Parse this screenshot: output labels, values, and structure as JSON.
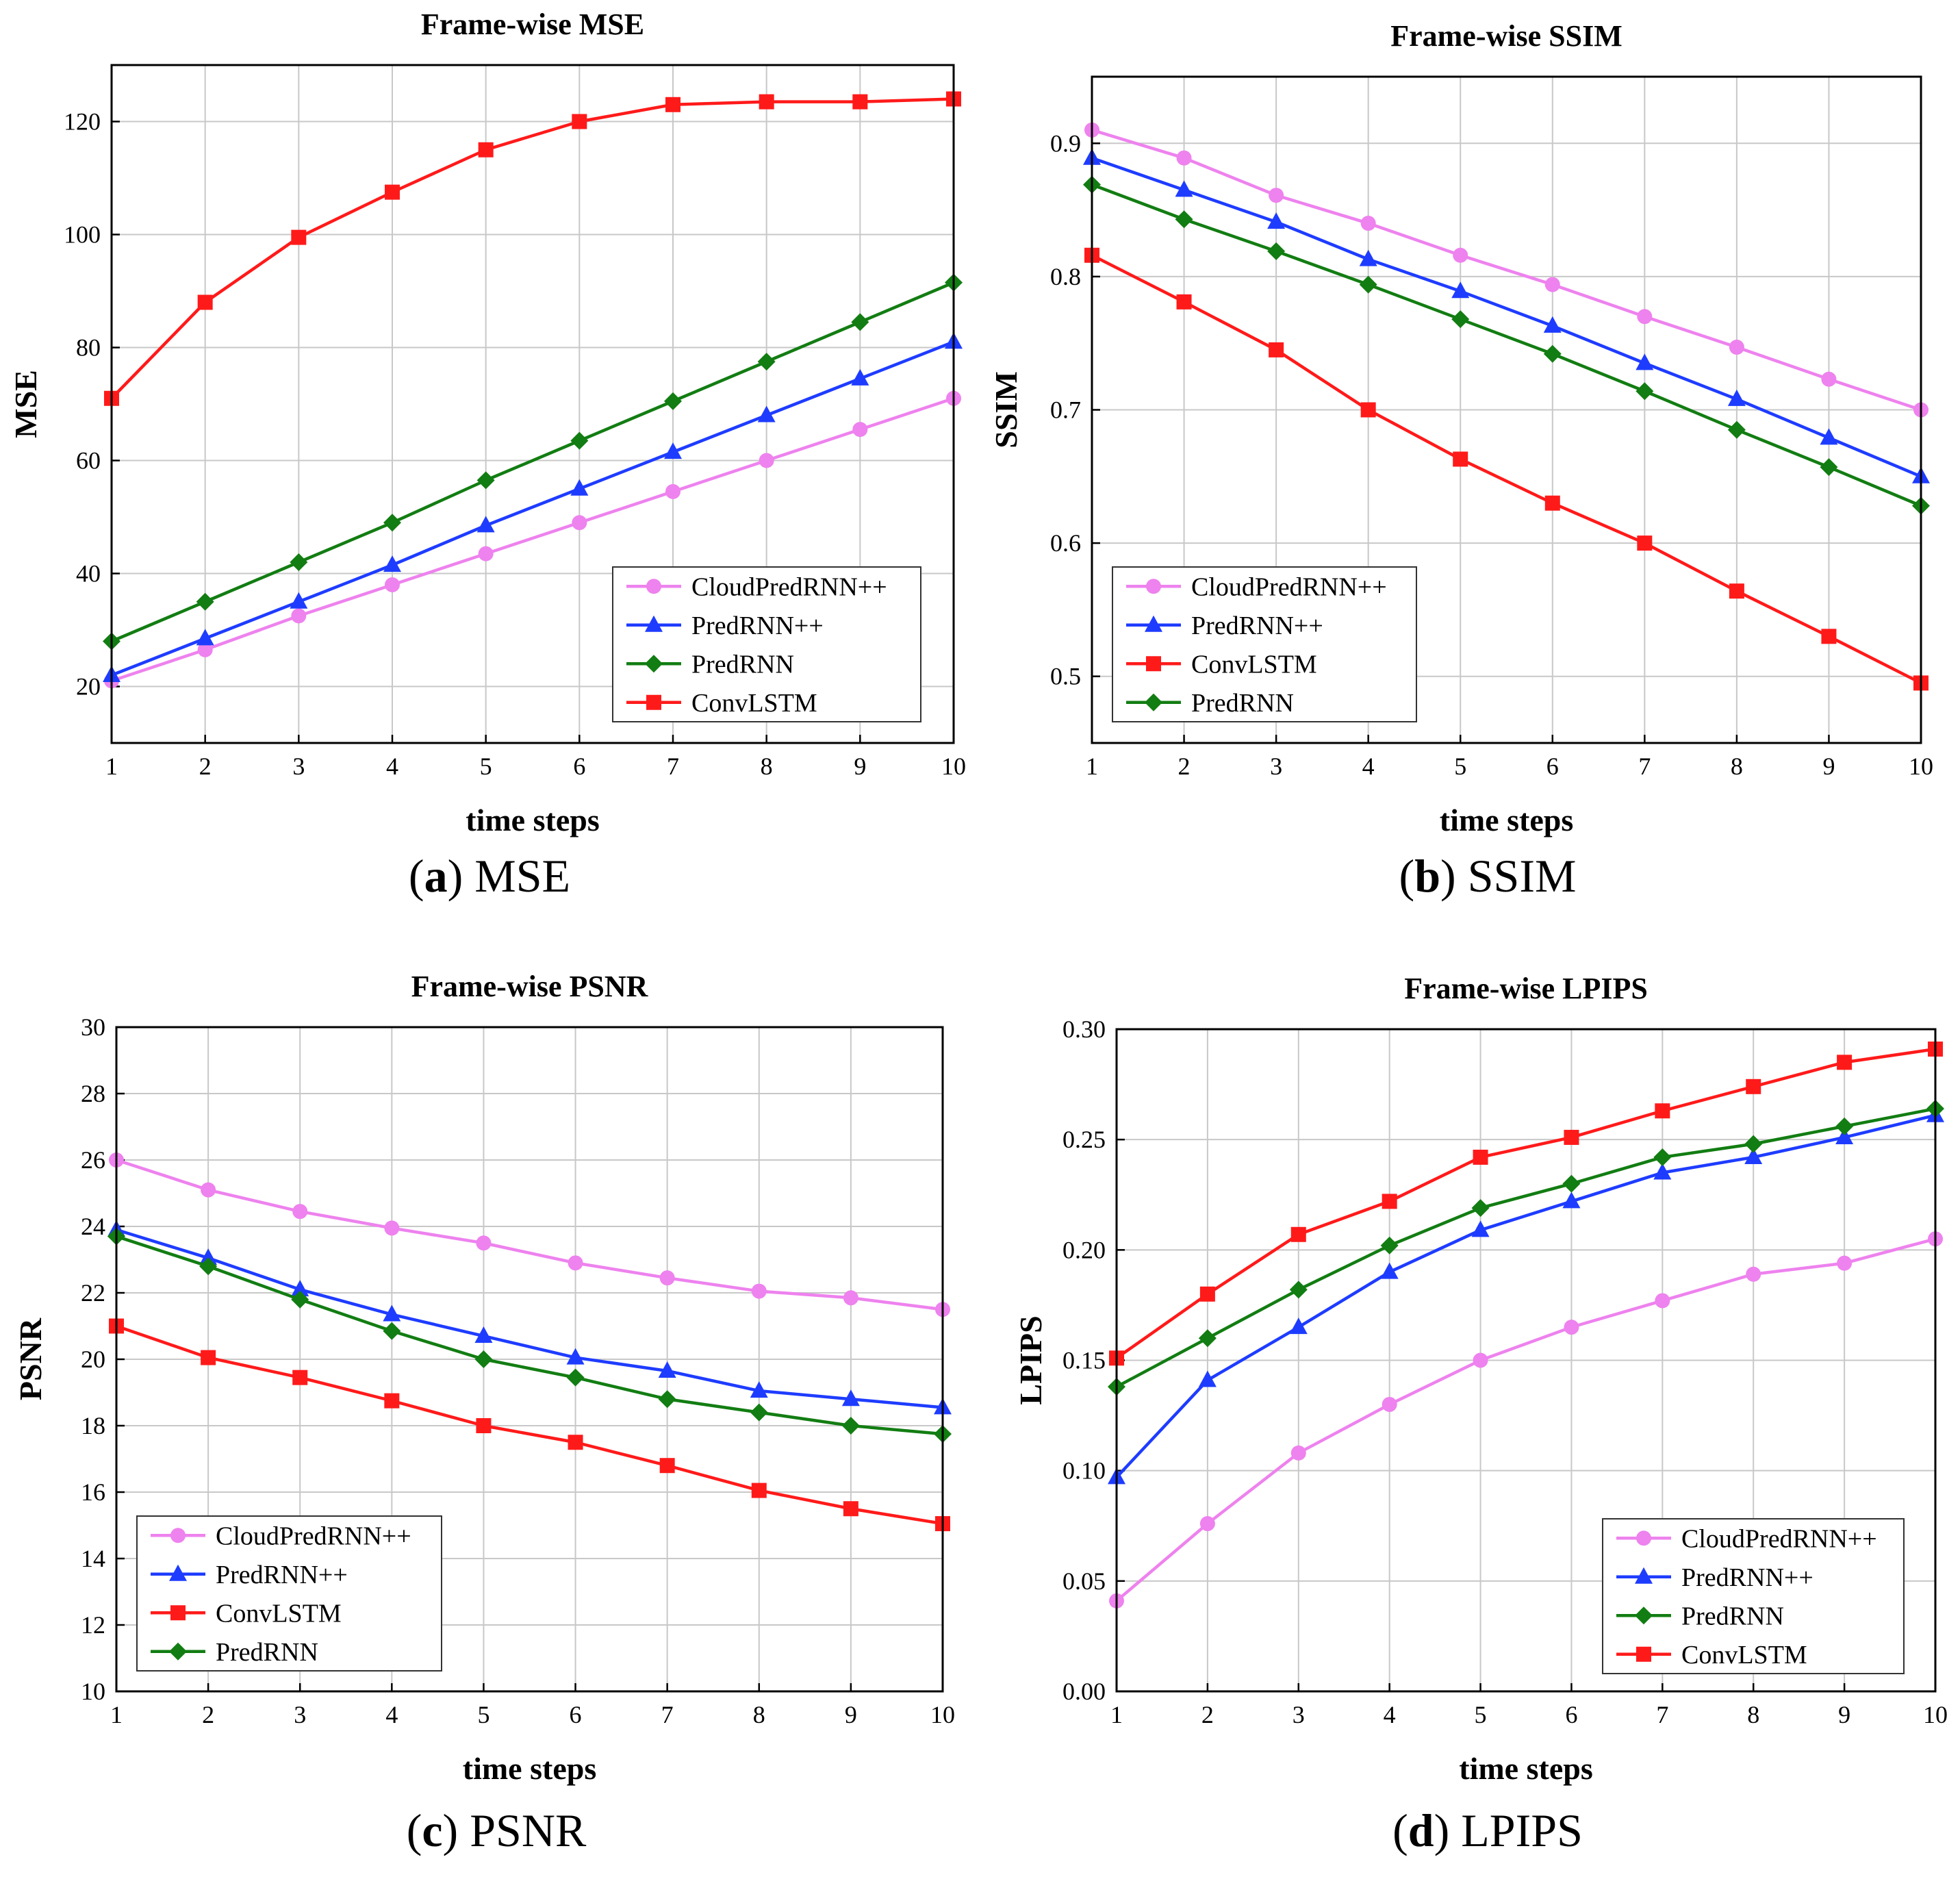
{
  "colors": {
    "CloudPredRNN++": "#ee82ee",
    "PredRNN++": "#1e3cff",
    "PredRNN": "#127d12",
    "ConvLSTM": "#ff1a1a"
  },
  "markers": {
    "CloudPredRNN++": "circle",
    "PredRNN++": "triangle",
    "PredRNN": "diamond",
    "ConvLSTM": "square"
  },
  "grid": true,
  "chart_data": [
    {
      "id": "mse",
      "type": "line",
      "title": "Frame-wise MSE",
      "xlabel": "time steps",
      "ylabel": "MSE",
      "x": [
        1,
        2,
        3,
        4,
        5,
        6,
        7,
        8,
        9,
        10
      ],
      "xlim": [
        1,
        10
      ],
      "ylim": [
        10,
        130
      ],
      "yticks": [
        20,
        40,
        60,
        80,
        100,
        120
      ],
      "ytick_labels": [
        "20",
        "40",
        "60",
        "80",
        "100",
        "120"
      ],
      "legend_position": "bottom-right",
      "legend_order": [
        "CloudPredRNN++",
        "PredRNN++",
        "PredRNN",
        "ConvLSTM"
      ],
      "series": [
        {
          "name": "CloudPredRNN++",
          "values": [
            21,
            26.5,
            32.5,
            38,
            43.5,
            49,
            54.5,
            60,
            65.5,
            71
          ]
        },
        {
          "name": "PredRNN++",
          "values": [
            22,
            28.5,
            35,
            41.5,
            48.5,
            55,
            61.5,
            68,
            74.5,
            81
          ]
        },
        {
          "name": "PredRNN",
          "values": [
            28,
            35,
            42,
            49,
            56.5,
            63.5,
            70.5,
            77.5,
            84.5,
            91.5
          ]
        },
        {
          "name": "ConvLSTM",
          "values": [
            71,
            88,
            99.5,
            107.5,
            115,
            120,
            123,
            123.5,
            123.5,
            124
          ]
        }
      ],
      "caption_letter": "a",
      "caption_text": "MSE"
    },
    {
      "id": "ssim",
      "type": "line",
      "title": "Frame-wise SSIM",
      "xlabel": "time steps",
      "ylabel": "SSIM",
      "x": [
        1,
        2,
        3,
        4,
        5,
        6,
        7,
        8,
        9,
        10
      ],
      "xlim": [
        1,
        10
      ],
      "ylim": [
        0.45,
        0.95
      ],
      "yticks": [
        0.5,
        0.6,
        0.7,
        0.8,
        0.9
      ],
      "ytick_labels": [
        "0.5",
        "0.6",
        "0.7",
        "0.8",
        "0.9"
      ],
      "legend_position": "bottom-left",
      "legend_order": [
        "CloudPredRNN++",
        "PredRNN++",
        "ConvLSTM",
        "PredRNN"
      ],
      "series": [
        {
          "name": "CloudPredRNN++",
          "values": [
            0.91,
            0.889,
            0.861,
            0.84,
            0.816,
            0.794,
            0.77,
            0.747,
            0.723,
            0.7
          ]
        },
        {
          "name": "PredRNN++",
          "values": [
            0.889,
            0.865,
            0.841,
            0.813,
            0.789,
            0.763,
            0.735,
            0.708,
            0.679,
            0.65
          ]
        },
        {
          "name": "ConvLSTM",
          "values": [
            0.816,
            0.781,
            0.745,
            0.7,
            0.663,
            0.63,
            0.6,
            0.564,
            0.53,
            0.495
          ]
        },
        {
          "name": "PredRNN",
          "values": [
            0.869,
            0.843,
            0.819,
            0.794,
            0.768,
            0.742,
            0.714,
            0.685,
            0.657,
            0.628
          ]
        }
      ],
      "caption_letter": "b",
      "caption_text": "SSIM"
    },
    {
      "id": "psnr",
      "type": "line",
      "title": "Frame-wise PSNR",
      "xlabel": "time steps",
      "ylabel": "PSNR",
      "x": [
        1,
        2,
        3,
        4,
        5,
        6,
        7,
        8,
        9,
        10
      ],
      "xlim": [
        1,
        10
      ],
      "ylim": [
        10,
        30
      ],
      "yticks": [
        10,
        12,
        14,
        16,
        18,
        20,
        22,
        24,
        26,
        28,
        30
      ],
      "ytick_labels": [
        "10",
        "12",
        "14",
        "16",
        "18",
        "20",
        "22",
        "24",
        "26",
        "28",
        "30"
      ],
      "legend_position": "bottom-left",
      "legend_order": [
        "CloudPredRNN++",
        "PredRNN++",
        "ConvLSTM",
        "PredRNN"
      ],
      "series": [
        {
          "name": "CloudPredRNN++",
          "values": [
            26.0,
            25.1,
            24.45,
            23.95,
            23.5,
            22.9,
            22.45,
            22.05,
            21.85,
            21.5
          ]
        },
        {
          "name": "PredRNN++",
          "values": [
            23.9,
            23.05,
            22.1,
            21.35,
            20.7,
            20.05,
            19.65,
            19.05,
            18.8,
            18.55
          ]
        },
        {
          "name": "ConvLSTM",
          "values": [
            21.0,
            20.05,
            19.45,
            18.75,
            18.0,
            17.5,
            16.8,
            16.05,
            15.5,
            15.05
          ]
        },
        {
          "name": "PredRNN",
          "values": [
            23.7,
            22.8,
            21.8,
            20.85,
            20.0,
            19.45,
            18.8,
            18.4,
            18.0,
            17.75
          ]
        }
      ],
      "caption_letter": "c",
      "caption_text": "PSNR"
    },
    {
      "id": "lpips",
      "type": "line",
      "title": "Frame-wise LPIPS",
      "xlabel": "time steps",
      "ylabel": "LPIPS",
      "x": [
        1,
        2,
        3,
        4,
        5,
        6,
        7,
        8,
        9,
        10
      ],
      "xlim": [
        1,
        10
      ],
      "ylim": [
        0,
        0.3
      ],
      "yticks": [
        0,
        0.05,
        0.1,
        0.15,
        0.2,
        0.25,
        0.3
      ],
      "ytick_labels": [
        "0.00",
        "0.05",
        "0.10",
        "0.15",
        "0.20",
        "0.25",
        "0.30"
      ],
      "legend_position": "bottom-right",
      "legend_order": [
        "CloudPredRNN++",
        "PredRNN++",
        "PredRNN",
        "ConvLSTM"
      ],
      "series": [
        {
          "name": "CloudPredRNN++",
          "values": [
            0.041,
            0.076,
            0.108,
            0.13,
            0.15,
            0.165,
            0.177,
            0.189,
            0.194,
            0.205
          ]
        },
        {
          "name": "PredRNN++",
          "values": [
            0.097,
            0.141,
            0.165,
            0.19,
            0.209,
            0.222,
            0.235,
            0.242,
            0.251,
            0.261
          ]
        },
        {
          "name": "PredRNN",
          "values": [
            0.138,
            0.16,
            0.182,
            0.202,
            0.219,
            0.23,
            0.242,
            0.248,
            0.256,
            0.264
          ]
        },
        {
          "name": "ConvLSTM",
          "values": [
            0.151,
            0.18,
            0.207,
            0.222,
            0.242,
            0.251,
            0.263,
            0.274,
            0.285,
            0.291
          ]
        }
      ],
      "caption_letter": "d",
      "caption_text": "LPIPS"
    }
  ]
}
